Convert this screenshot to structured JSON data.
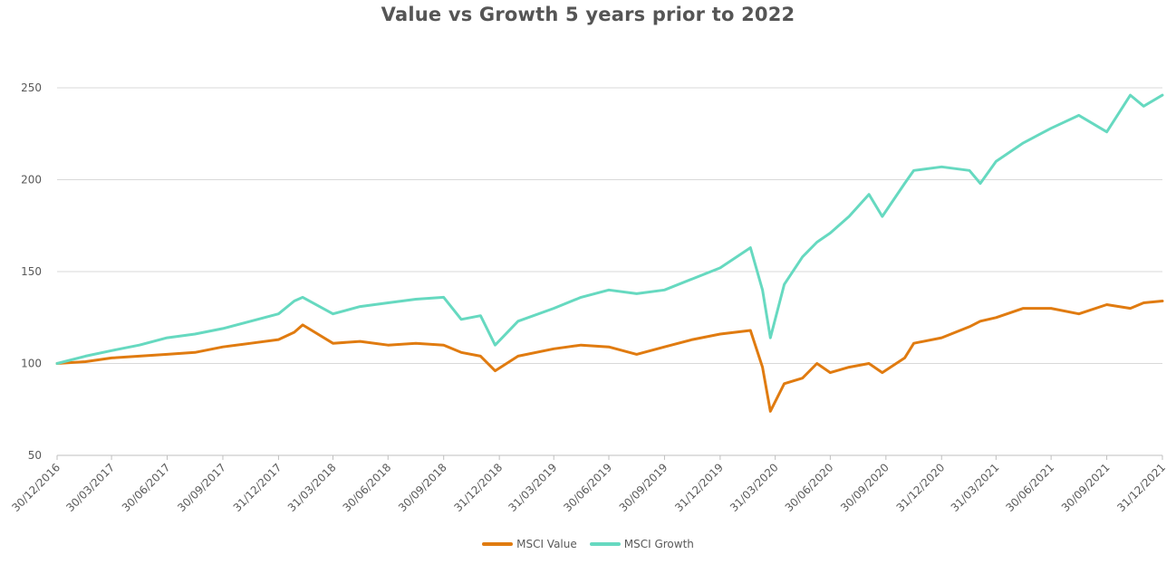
{
  "chart_data": {
    "type": "line",
    "title": "Value vs Growth 5 years prior to 2022",
    "xlabel": "",
    "ylabel": "",
    "ylim": [
      50,
      250
    ],
    "yticks": [
      50,
      100,
      150,
      200,
      250
    ],
    "xlim": [
      "2016-12-30",
      "2021-12-31"
    ],
    "x_tick_labels": [
      "30/12/2016",
      "30/03/2017",
      "30/06/2017",
      "30/09/2017",
      "31/12/2017",
      "31/03/2018",
      "30/06/2018",
      "30/09/2018",
      "31/12/2018",
      "31/03/2019",
      "30/06/2019",
      "30/09/2019",
      "31/12/2019",
      "31/03/2020",
      "30/06/2020",
      "30/09/2020",
      "31/12/2020",
      "31/03/2021",
      "30/06/2021",
      "30/09/2021",
      "31/12/2021"
    ],
    "grid": "horizontal",
    "legend_position": "bottom",
    "x": [
      "2016-12-30",
      "2017-02-15",
      "2017-03-30",
      "2017-05-15",
      "2017-06-30",
      "2017-08-15",
      "2017-09-30",
      "2017-11-15",
      "2017-12-31",
      "2018-01-26",
      "2018-02-09",
      "2018-03-31",
      "2018-05-15",
      "2018-06-30",
      "2018-08-15",
      "2018-09-30",
      "2018-10-29",
      "2018-11-30",
      "2018-12-24",
      "2019-01-31",
      "2019-03-31",
      "2019-05-15",
      "2019-06-30",
      "2019-08-15",
      "2019-09-30",
      "2019-11-15",
      "2019-12-31",
      "2020-02-19",
      "2020-03-10",
      "2020-03-23",
      "2020-04-15",
      "2020-05-15",
      "2020-06-08",
      "2020-06-30",
      "2020-07-31",
      "2020-09-02",
      "2020-09-24",
      "2020-10-31",
      "2020-11-15",
      "2020-12-31",
      "2021-02-15",
      "2021-03-05",
      "2021-03-31",
      "2021-05-15",
      "2021-06-30",
      "2021-08-15",
      "2021-09-30",
      "2021-11-08",
      "2021-11-30",
      "2021-12-31"
    ],
    "series": [
      {
        "name": "MSCI Value",
        "color": "#E07B10",
        "values": [
          100,
          101,
          103,
          104,
          105,
          106,
          109,
          111,
          113,
          117,
          121,
          111,
          112,
          110,
          111,
          110,
          106,
          104,
          96,
          104,
          108,
          110,
          109,
          105,
          109,
          113,
          116,
          118,
          98,
          74,
          89,
          92,
          100,
          95,
          98,
          100,
          95,
          103,
          111,
          114,
          120,
          123,
          125,
          130,
          130,
          127,
          132,
          130,
          133,
          134
        ]
      },
      {
        "name": "MSCI Growth",
        "color": "#66D9C0",
        "values": [
          100,
          104,
          107,
          110,
          114,
          116,
          119,
          123,
          127,
          134,
          136,
          127,
          131,
          133,
          135,
          136,
          124,
          126,
          110,
          123,
          130,
          136,
          140,
          138,
          140,
          146,
          152,
          163,
          140,
          114,
          143,
          158,
          166,
          171,
          180,
          192,
          180,
          198,
          205,
          207,
          205,
          198,
          210,
          220,
          228,
          235,
          226,
          246,
          240,
          246
        ]
      }
    ]
  }
}
